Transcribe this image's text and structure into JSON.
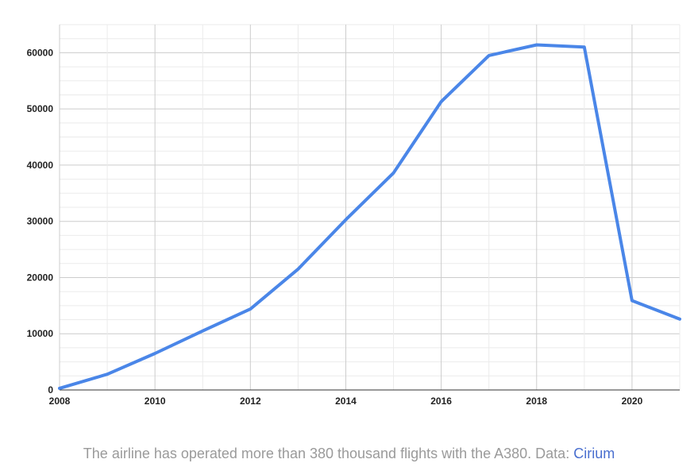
{
  "chart_data": {
    "type": "line",
    "title": "",
    "xlabel": "",
    "ylabel": "",
    "x": [
      2008,
      2009,
      2010,
      2011,
      2012,
      2013,
      2014,
      2015,
      2016,
      2017,
      2018,
      2019,
      2020,
      2021
    ],
    "series": [
      {
        "values": [
          300,
          2800,
          6500,
          10500,
          14400,
          21500,
          30300,
          38600,
          51300,
          59500,
          61400,
          61000,
          15900,
          12600
        ],
        "color": "#4a86e8"
      }
    ],
    "xlim": [
      2008,
      2021
    ],
    "ylim": [
      0,
      65000
    ],
    "x_ticks": [
      "2008",
      "2010",
      "2012",
      "2014",
      "2016",
      "2018",
      "2020"
    ],
    "y_ticks": [
      "0",
      "10000",
      "20000",
      "30000",
      "40000",
      "50000",
      "60000"
    ],
    "grid": true,
    "legend": "none"
  },
  "caption": {
    "text": "The airline has operated more than 380 thousand flights with the A380. Data: ",
    "source_link": "Cirium",
    "link_color": "#4a6fcf"
  }
}
